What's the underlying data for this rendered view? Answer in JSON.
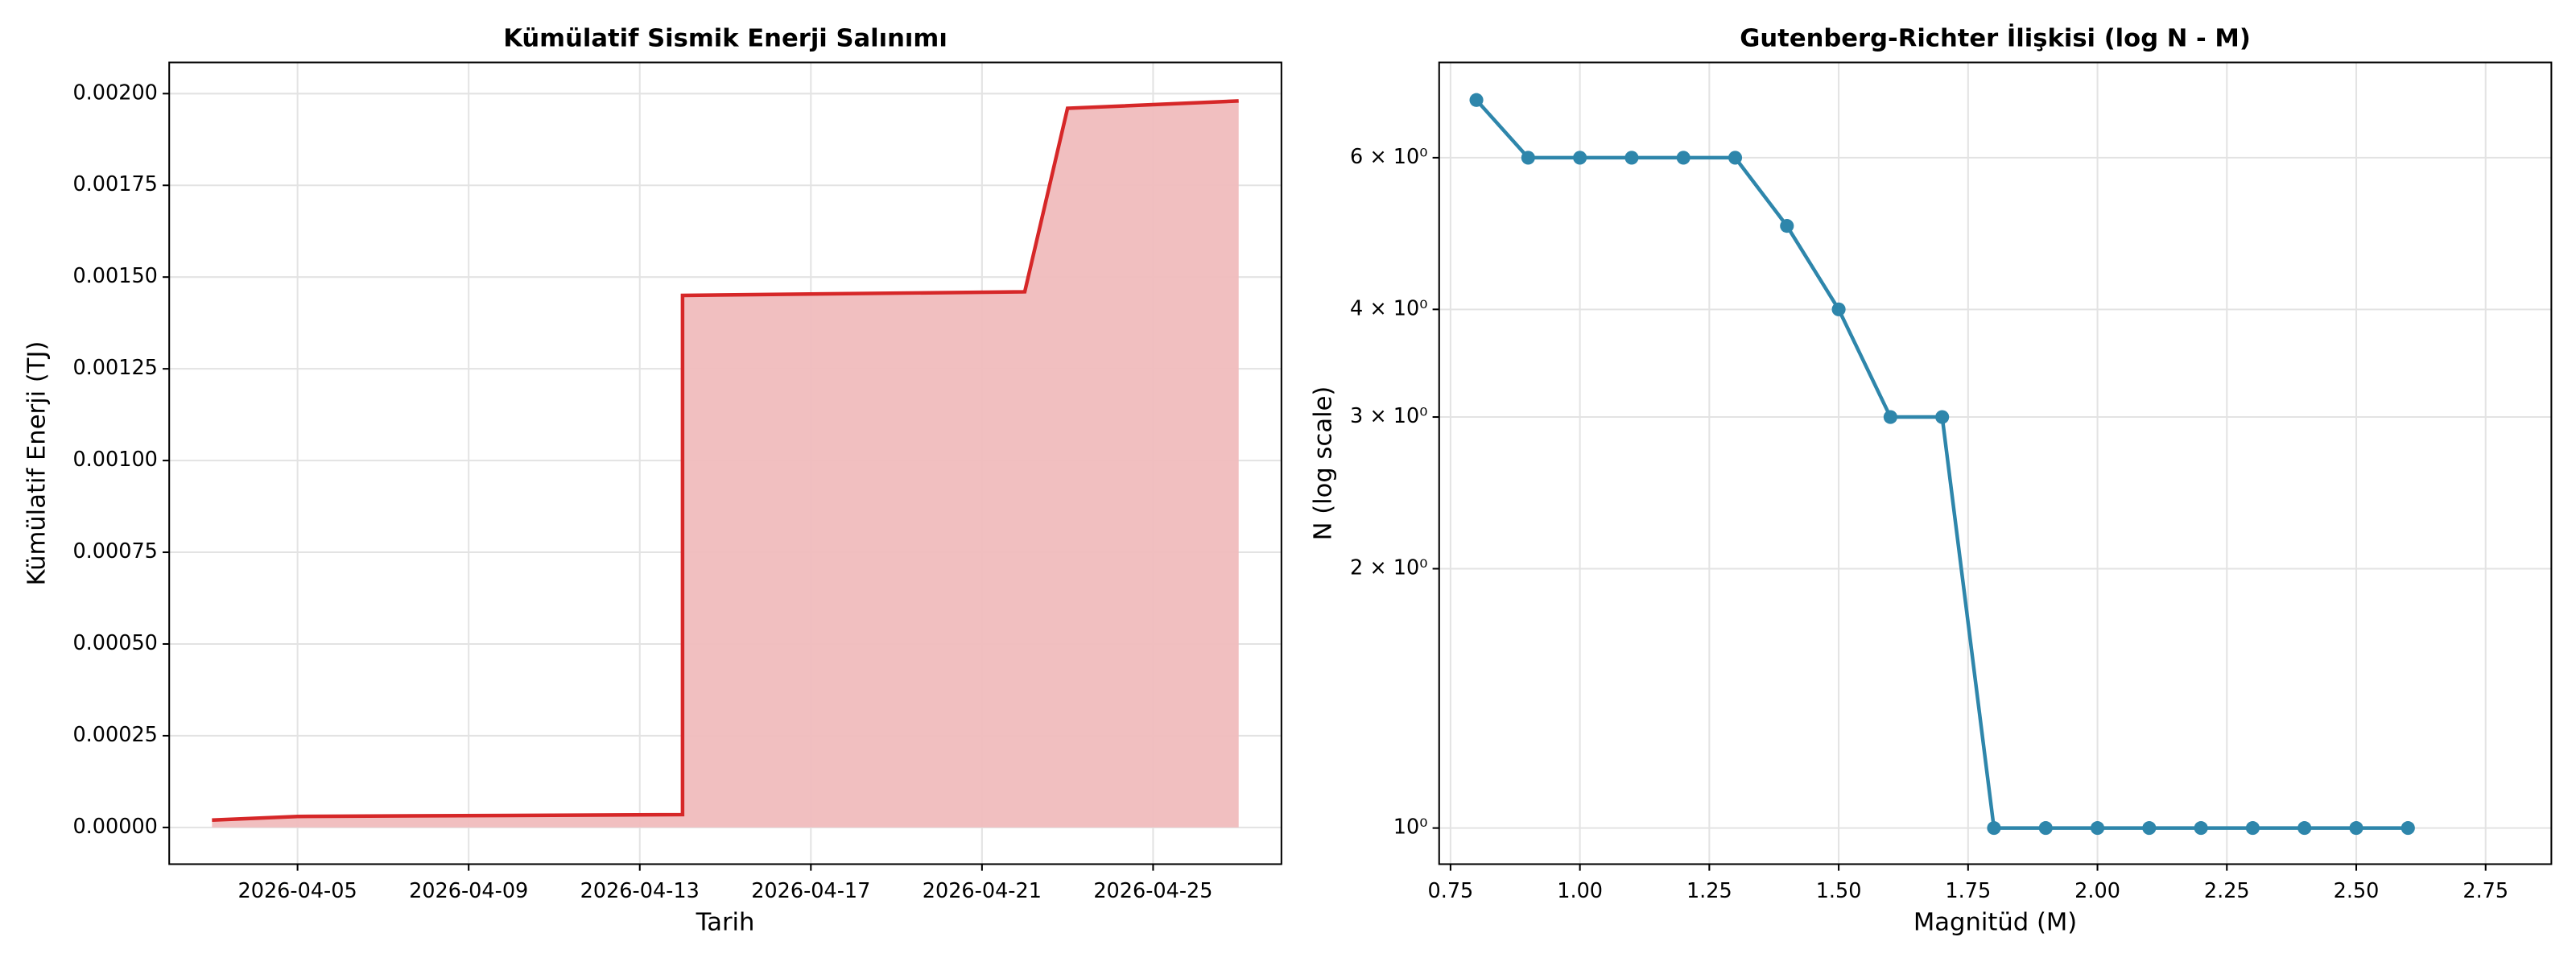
{
  "chart_data": [
    {
      "type": "area",
      "title": "Kümülatif Sismik Enerji Salınımı",
      "xlabel": "Tarih",
      "ylabel": "Kümülatif Enerji (TJ)",
      "x": [
        "2026-04-03",
        "2026-04-05",
        "2026-04-14",
        "2026-04-14",
        "2026-04-22",
        "2026-04-23",
        "2026-04-27"
      ],
      "series": [
        {
          "name": "Kümülatif Enerji",
          "color": "#d62728",
          "fill": "#f0bcbd",
          "values": [
            2e-05,
            3e-05,
            3.5e-05,
            0.00145,
            0.00146,
            0.00196,
            0.00198
          ]
        }
      ],
      "xlim": [
        "2026-04-02",
        "2026-04-28"
      ],
      "xticks": [
        "2026-04-05",
        "2026-04-09",
        "2026-04-13",
        "2026-04-17",
        "2026-04-21",
        "2026-04-25"
      ],
      "ylim": [
        -0.0001,
        0.002085
      ],
      "yticks": [
        {
          "value": 0,
          "label": "0.00000"
        },
        {
          "value": 0.00025,
          "label": "0.00025"
        },
        {
          "value": 0.0005,
          "label": "0.00050"
        },
        {
          "value": 0.00075,
          "label": "0.00075"
        },
        {
          "value": 0.001,
          "label": "0.00100"
        },
        {
          "value": 0.00125,
          "label": "0.00125"
        },
        {
          "value": 0.0015,
          "label": "0.00150"
        },
        {
          "value": 0.00175,
          "label": "0.00175"
        },
        {
          "value": 0.002,
          "label": "0.00200"
        }
      ],
      "grid": true
    },
    {
      "type": "line",
      "title": "Gutenberg-Richter İlişkisi (log N - M)",
      "xlabel": "Magnitüd (M)",
      "ylabel": "N (log scale)",
      "x": [
        0.8,
        0.9,
        1.0,
        1.1,
        1.2,
        1.3,
        1.4,
        1.5,
        1.6,
        1.7,
        1.8,
        1.9,
        2.0,
        2.1,
        2.2,
        2.3,
        2.4,
        2.5,
        2.6
      ],
      "series": [
        {
          "name": "N",
          "color": "#2e86ab",
          "values": [
            7,
            6,
            6,
            6,
            6,
            6,
            5,
            4,
            3,
            3,
            1,
            1,
            1,
            1,
            1,
            1,
            1,
            1,
            1
          ]
        }
      ],
      "xlim": [
        0.728,
        2.877
      ],
      "xticks": [
        {
          "value": 0.75,
          "label": "0.75"
        },
        {
          "value": 1,
          "label": "1.00"
        },
        {
          "value": 1.25,
          "label": "1.25"
        },
        {
          "value": 1.5,
          "label": "1.50"
        },
        {
          "value": 1.75,
          "label": "1.75"
        },
        {
          "value": 2,
          "label": "2.00"
        },
        {
          "value": 2.25,
          "label": "2.25"
        },
        {
          "value": 2.5,
          "label": "2.50"
        },
        {
          "value": 2.75,
          "label": "2.75"
        }
      ],
      "ylim": [
        0.908,
        7.74
      ],
      "ylog": true,
      "yticks": [
        {
          "value": 1,
          "label": "10⁰"
        },
        {
          "value": 2,
          "label": "2 × 10⁰"
        },
        {
          "value": 3,
          "label": "3 × 10⁰"
        },
        {
          "value": 4,
          "label": "4 × 10⁰"
        },
        {
          "value": 6,
          "label": "6 × 10⁰"
        }
      ],
      "grid": true
    }
  ]
}
